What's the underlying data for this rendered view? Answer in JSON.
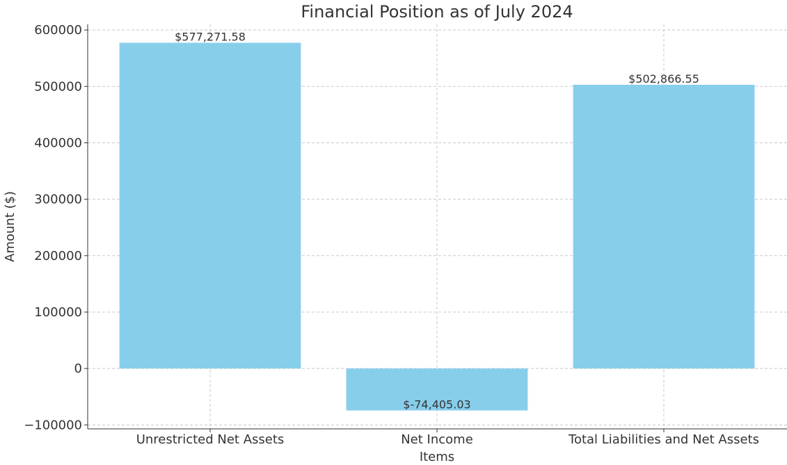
{
  "chart_data": {
    "type": "bar",
    "title": "Financial Position as of July 2024",
    "x_label": "Items",
    "y_label": "Amount ($)",
    "categories": [
      "Unrestricted Net Assets",
      "Net Income",
      "Total Liabilities and Net Assets"
    ],
    "values": [
      577271.58,
      -74405.03,
      502866.55
    ],
    "value_labels": [
      "$577,271.58",
      "$-74,405.03",
      "$502,866.55"
    ],
    "color": "#87ceeb",
    "ylim": [
      -107000,
      610000
    ],
    "yticks": [
      {
        "value": -100000,
        "label": "−100000"
      },
      0,
      100000,
      200000,
      300000,
      400000,
      500000,
      600000
    ],
    "grid": true
  }
}
